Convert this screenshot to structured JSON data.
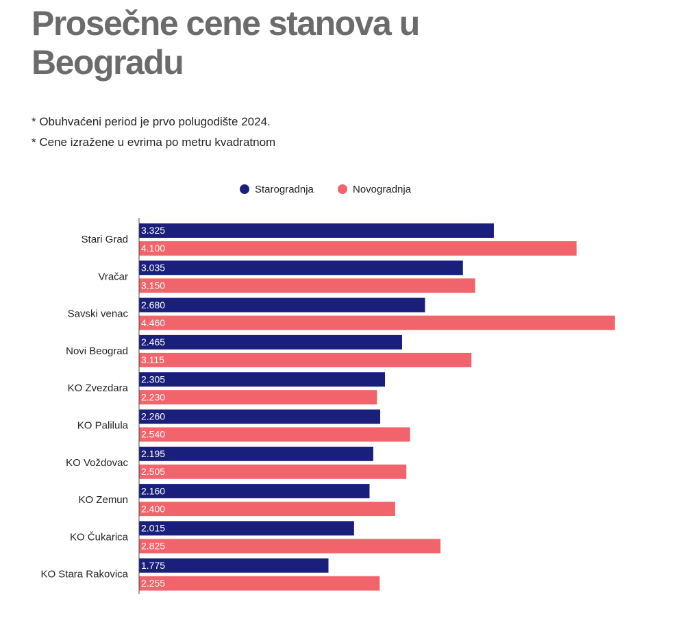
{
  "chart_data": {
    "type": "barh",
    "title": "Prosečne cene stanova u Beogradu",
    "notes": [
      "* Obuhvaćeni period je prvo polugodište 2024.",
      "* Cene izražene u evrima po metru kvadratnom"
    ],
    "categories": [
      "Stari Grad",
      "Vračar",
      "Savski venac",
      "Novi Beograd",
      "KO Zvezdara",
      "KO Palilula",
      "KO Voždovac",
      "KO Zemun",
      "KO Čukarica",
      "KO Stara Rakovica"
    ],
    "series": [
      {
        "name": "Starogradnja",
        "color": "#1b1f7c",
        "values": [
          3325,
          3035,
          2680,
          2465,
          2305,
          2260,
          2195,
          2160,
          2015,
          1775
        ],
        "value_labels": [
          "3.325",
          "3.035",
          "2.680",
          "2.465",
          "2.305",
          "2.260",
          "2.195",
          "2.160",
          "2.015",
          "1.775"
        ]
      },
      {
        "name": "Novogradnja",
        "color": "#f2646c",
        "values": [
          4100,
          3150,
          4460,
          3115,
          2230,
          2540,
          2505,
          2400,
          2825,
          2255
        ],
        "value_labels": [
          "4.100",
          "3.150",
          "4.460",
          "3.115",
          "2.230",
          "2.540",
          "2.505",
          "2.400",
          "2.825",
          "2.255"
        ]
      }
    ],
    "xlim": [
      0,
      4500
    ]
  }
}
